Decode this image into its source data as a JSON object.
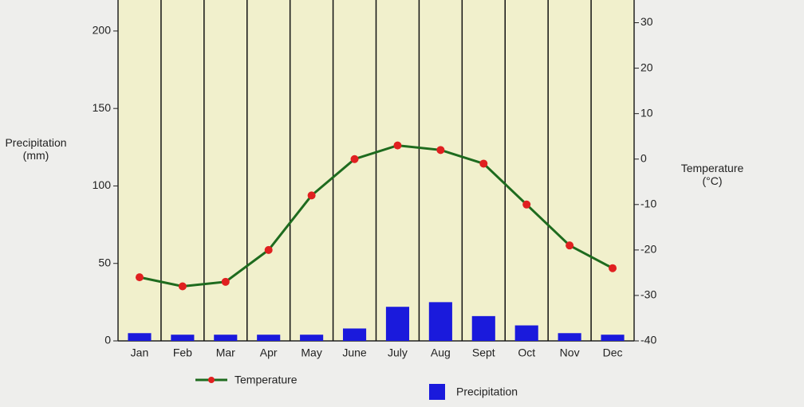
{
  "chart_data": {
    "type": "climograph",
    "categories": [
      "Jan",
      "Feb",
      "Mar",
      "Apr",
      "May",
      "June",
      "July",
      "Aug",
      "Sept",
      "Oct",
      "Nov",
      "Dec"
    ],
    "series": [
      {
        "name": "Precipitation",
        "type": "bar",
        "color": "#1a1adc",
        "values": [
          5,
          4,
          4,
          4,
          4,
          8,
          22,
          25,
          16,
          10,
          5,
          4
        ]
      },
      {
        "name": "Temperature",
        "type": "line",
        "axis": "y2",
        "color": "#1e6b1e",
        "marker_color": "#e02020",
        "values": [
          -26,
          -28,
          -27,
          -20,
          -8,
          0,
          3,
          2,
          -1,
          -10,
          -19,
          -24
        ]
      }
    ],
    "ylabel": "Precipitation\n(mm)",
    "y2label": "Temperature\n(°C)",
    "ylim": [
      0,
      220
    ],
    "yticks": [
      0,
      50,
      100,
      150,
      200
    ],
    "y2lim": [
      -40,
      35
    ],
    "y2ticks": [
      -40,
      -30,
      -20,
      -10,
      0,
      10,
      20,
      30
    ]
  }
}
